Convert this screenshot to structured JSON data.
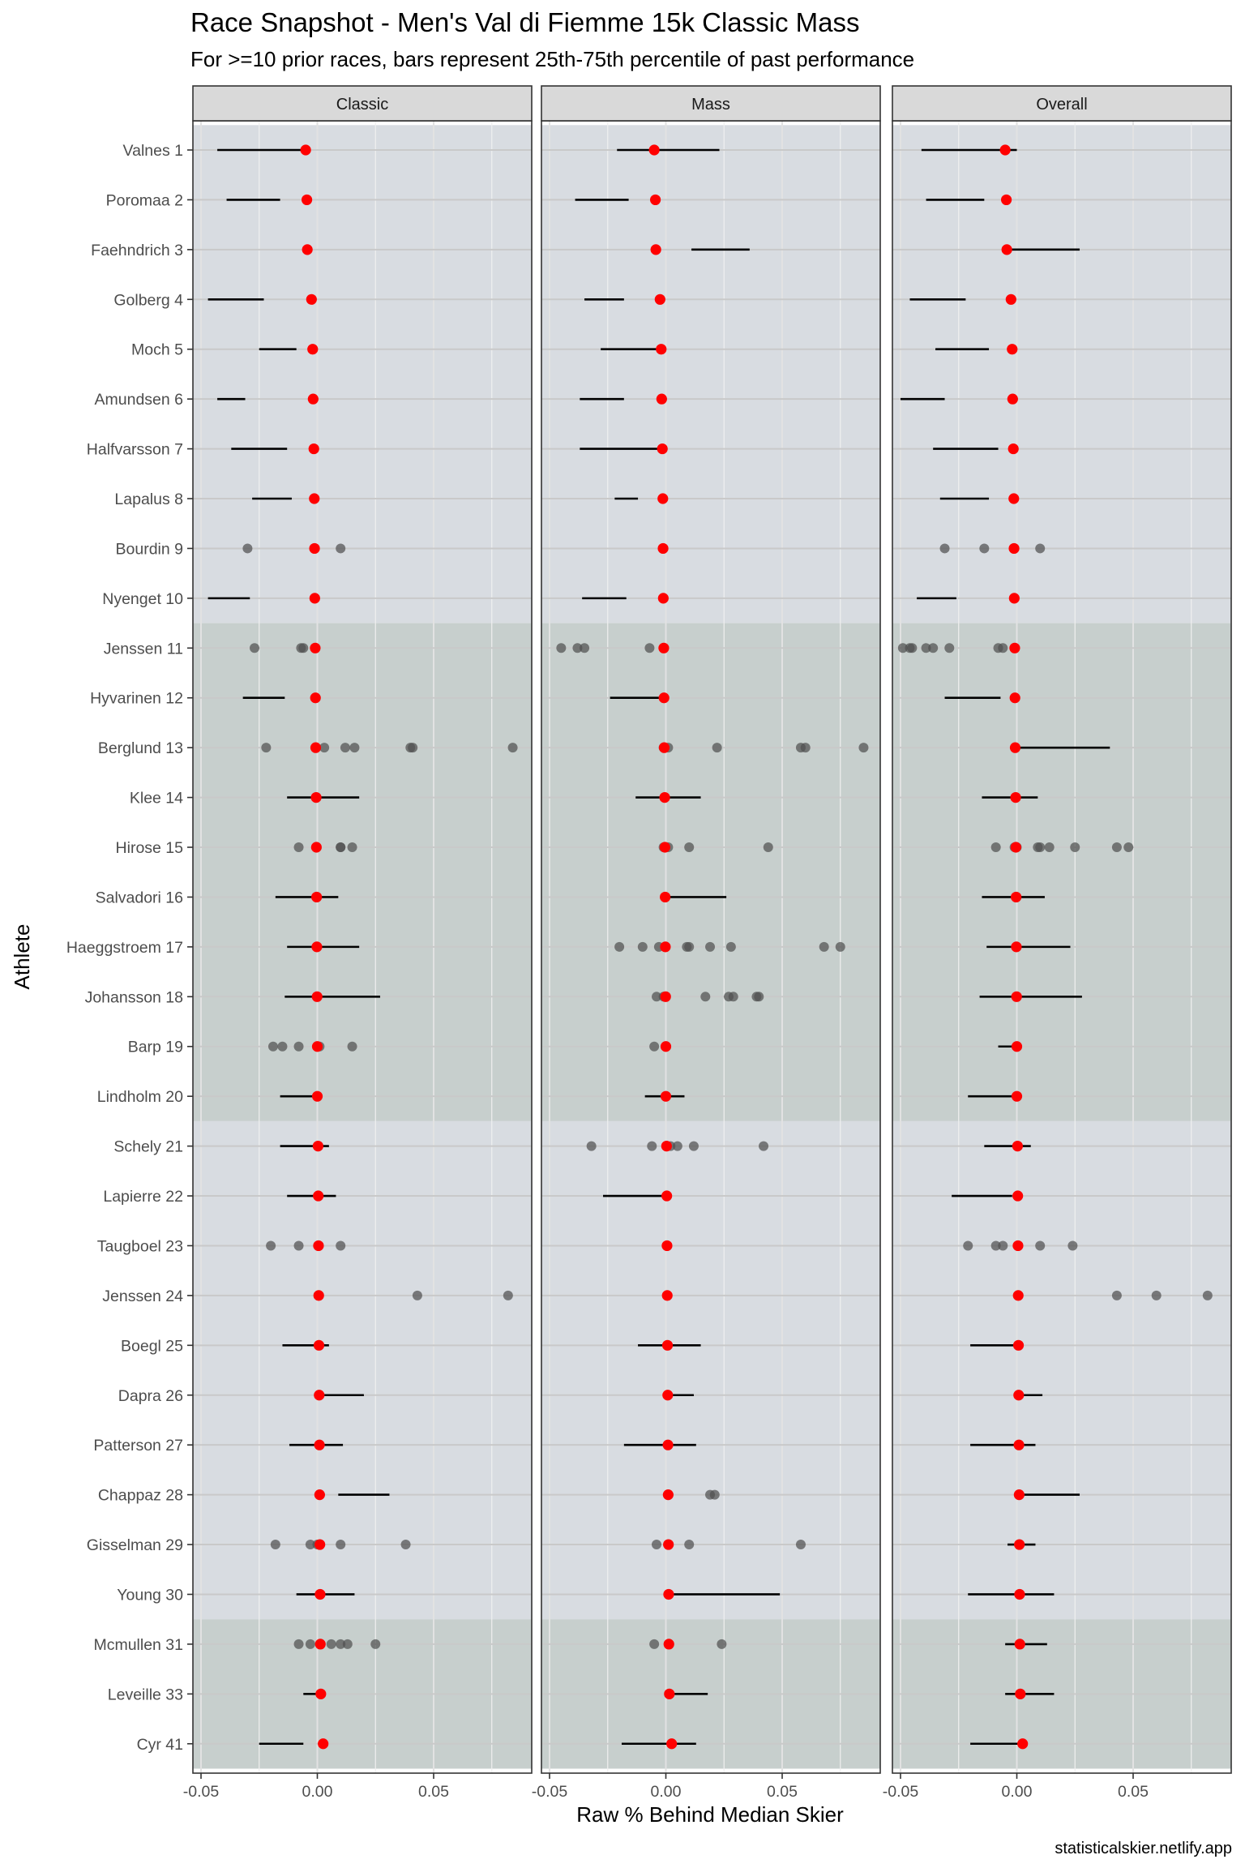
{
  "header": {
    "title": "Race Snapshot -  Men's Val di Fiemme 15k Classic Mass",
    "subtitle": "For >=10 prior races, bars represent 25th-75th percentile of past performance"
  },
  "caption": "statisticalskier.netlify.app",
  "colors": {
    "panel_border": "#333333",
    "strip_fill": "#d9d9d9",
    "band_light": "#d8dce1",
    "band_dark": "#c7cfcd",
    "grid": "#ebebeb",
    "grid_in_band": "#c9c9c9",
    "range_line": "#000000",
    "past_point": "#505050",
    "current_point": "#ff0000"
  },
  "chart_data": {
    "type": "scatter",
    "facets": [
      "Classic",
      "Mass",
      "Overall"
    ],
    "xlabel": "Raw % Behind Median Skier",
    "ylabel": "Athlete",
    "xlim": [
      -0.05,
      0.09
    ],
    "x_ticks": [
      -0.05,
      0.0,
      0.05
    ],
    "x_tick_labels": [
      "-0.05",
      "0.00",
      "0.05"
    ],
    "grid": true,
    "athletes": [
      "Valnes 1",
      "Poromaa 2",
      "Faehndrich 3",
      "Golberg 4",
      "Moch 5",
      "Amundsen 6",
      "Halfvarsson 7",
      "Lapalus 8",
      "Bourdin 9",
      "Nyenget 10",
      "Jenssen 11",
      "Hyvarinen 12",
      "Berglund 13",
      "Klee 14",
      "Hirose 15",
      "Salvadori 16",
      "Haeggstroem 17",
      "Johansson 18",
      "Barp 19",
      "Lindholm 20",
      "Schely 21",
      "Lapierre 22",
      "Taugboel 23",
      "Jenssen 24",
      "Boegl 25",
      "Dapra 26",
      "Patterson 27",
      "Chappaz 28",
      "Gisselman 29",
      "Young 30",
      "Mcmullen 31",
      "Leveille 33",
      "Cyr 41"
    ],
    "bands": [
      {
        "from": 0,
        "to": 9,
        "tone": "light"
      },
      {
        "from": 10,
        "to": 19,
        "tone": "dark"
      },
      {
        "from": 20,
        "to": 29,
        "tone": "light"
      },
      {
        "from": 30,
        "to": 32,
        "tone": "dark"
      }
    ],
    "current": [
      -0.005,
      -0.0045,
      -0.0043,
      -0.0025,
      -0.002,
      -0.0018,
      -0.0015,
      -0.0013,
      -0.0012,
      -0.0011,
      -0.0009,
      -0.0008,
      -0.0007,
      -0.0005,
      -0.0004,
      -0.0003,
      -0.0002,
      -0.0001,
      0.0,
      0.0,
      0.0003,
      0.0004,
      0.0005,
      0.0006,
      0.0007,
      0.0008,
      0.0009,
      0.001,
      0.0011,
      0.0012,
      0.0013,
      0.0015,
      0.0025
    ],
    "panels": {
      "Classic": {
        "ranges": [
          [
            -0.043,
            -0.006
          ],
          [
            -0.039,
            -0.016
          ],
          null,
          [
            -0.047,
            -0.023
          ],
          [
            -0.025,
            -0.009
          ],
          [
            -0.043,
            -0.031
          ],
          [
            -0.037,
            -0.013
          ],
          [
            -0.028,
            -0.011
          ],
          null,
          [
            -0.047,
            -0.029
          ],
          null,
          [
            -0.032,
            -0.014
          ],
          null,
          [
            -0.013,
            0.018
          ],
          null,
          [
            -0.018,
            0.009
          ],
          [
            -0.013,
            0.018
          ],
          [
            -0.014,
            0.027
          ],
          null,
          [
            -0.016,
            0.0
          ],
          [
            -0.016,
            0.005
          ],
          [
            -0.013,
            0.008
          ],
          null,
          null,
          [
            -0.015,
            0.005
          ],
          [
            0.0,
            0.02
          ],
          [
            -0.012,
            0.011
          ],
          [
            0.009,
            0.031
          ],
          null,
          [
            -0.009,
            0.016
          ],
          null,
          [
            -0.006,
            0.003
          ],
          [
            -0.025,
            -0.006
          ]
        ],
        "points": [
          [],
          [],
          [],
          [],
          [],
          [],
          [],
          [],
          [
            -0.03,
            0.01
          ],
          [],
          [
            -0.027,
            -0.007,
            -0.006
          ],
          [],
          [
            -0.022,
            0.003,
            0.012,
            0.016,
            0.04,
            0.041,
            0.084
          ],
          [],
          [
            -0.008,
            0.01,
            0.01,
            0.015
          ],
          [],
          [],
          [],
          [
            -0.019,
            -0.015,
            -0.008,
            0.001,
            0.015
          ],
          [],
          [],
          [],
          [
            -0.02,
            -0.008,
            0.01
          ],
          [
            0.043,
            0.082
          ],
          [],
          [],
          [],
          [],
          [
            -0.018,
            -0.003,
            0.0,
            0.01,
            0.038
          ],
          [],
          [
            -0.008,
            -0.003,
            0.006,
            0.01,
            0.013,
            0.025
          ],
          [],
          []
        ]
      },
      "Mass": {
        "ranges": [
          [
            -0.021,
            0.023
          ],
          [
            -0.039,
            -0.016
          ],
          [
            0.011,
            0.036
          ],
          [
            -0.035,
            -0.018
          ],
          [
            -0.028,
            -0.002
          ],
          [
            -0.037,
            -0.018
          ],
          [
            -0.037,
            -0.002
          ],
          [
            -0.022,
            -0.012
          ],
          null,
          [
            -0.036,
            -0.017
          ],
          null,
          [
            -0.024,
            -0.002
          ],
          null,
          [
            -0.013,
            0.015
          ],
          null,
          [
            -0.001,
            0.026
          ],
          null,
          null,
          null,
          [
            -0.009,
            0.008
          ],
          null,
          [
            -0.027,
            0.0
          ],
          null,
          null,
          [
            -0.012,
            0.015
          ],
          [
            0.0,
            0.012
          ],
          [
            -0.018,
            0.013
          ],
          null,
          null,
          [
            0.0,
            0.049
          ],
          null,
          [
            0.0,
            0.018
          ],
          [
            -0.019,
            0.013
          ]
        ],
        "points": [
          [],
          [],
          [],
          [],
          [],
          [],
          [],
          [],
          [],
          [],
          [
            -0.045,
            -0.038,
            -0.035,
            -0.007
          ],
          [],
          [
            -0.001,
            0.001,
            0.022,
            0.058,
            0.06,
            0.085
          ],
          [],
          [
            -0.001,
            0.001,
            0.01,
            0.044
          ],
          [],
          [
            -0.02,
            -0.01,
            -0.003,
            0.009,
            0.01,
            0.019,
            0.028,
            0.068,
            0.075
          ],
          [
            -0.004,
            -0.001,
            0.0,
            0.017,
            0.027,
            0.029,
            0.039,
            0.04
          ],
          [
            -0.005
          ],
          [],
          [
            -0.032,
            -0.006,
            0.002,
            0.005,
            0.012,
            0.042
          ],
          [],
          [],
          [],
          [],
          [],
          [],
          [
            0.019,
            0.021
          ],
          [
            -0.004,
            0.01,
            0.058
          ],
          [],
          [
            -0.005,
            0.024
          ],
          [],
          []
        ]
      },
      "Overall": {
        "ranges": [
          [
            -0.041,
            0.0
          ],
          [
            -0.039,
            -0.014
          ],
          [
            -0.004,
            0.027
          ],
          [
            -0.046,
            -0.022
          ],
          [
            -0.035,
            -0.012
          ],
          [
            -0.05,
            -0.031
          ],
          [
            -0.036,
            -0.008
          ],
          [
            -0.033,
            -0.012
          ],
          null,
          [
            -0.043,
            -0.026
          ],
          null,
          [
            -0.031,
            -0.007
          ],
          [
            0.0,
            0.04
          ],
          [
            -0.015,
            0.009
          ],
          null,
          [
            -0.015,
            0.012
          ],
          [
            -0.013,
            0.023
          ],
          [
            -0.016,
            0.028
          ],
          [
            -0.008,
            0.0
          ],
          [
            -0.021,
            -0.002
          ],
          [
            -0.014,
            0.006
          ],
          [
            -0.028,
            -0.002
          ],
          null,
          null,
          [
            -0.02,
            0.0
          ],
          [
            0.0,
            0.011
          ],
          [
            -0.02,
            0.008
          ],
          [
            0.0,
            0.027
          ],
          [
            -0.004,
            0.008
          ],
          [
            -0.021,
            0.016
          ],
          [
            -0.005,
            0.013
          ],
          [
            -0.005,
            0.016
          ],
          [
            -0.02,
            0.002
          ]
        ],
        "points": [
          [],
          [],
          [],
          [],
          [],
          [],
          [],
          [],
          [
            -0.031,
            -0.014,
            0.01
          ],
          [],
          [
            -0.049,
            -0.046,
            -0.045,
            -0.039,
            -0.036,
            -0.029,
            -0.008,
            -0.006
          ],
          [],
          [],
          [],
          [
            -0.009,
            -0.001,
            0.0,
            0.009,
            0.01,
            0.014,
            0.025,
            0.043,
            0.048
          ],
          [],
          [],
          [],
          [],
          [],
          [],
          [],
          [
            -0.021,
            -0.009,
            -0.006,
            0.01,
            0.024
          ],
          [
            0.043,
            0.06,
            0.082
          ],
          [],
          [],
          [],
          [],
          [],
          [],
          [],
          [],
          []
        ]
      }
    }
  }
}
